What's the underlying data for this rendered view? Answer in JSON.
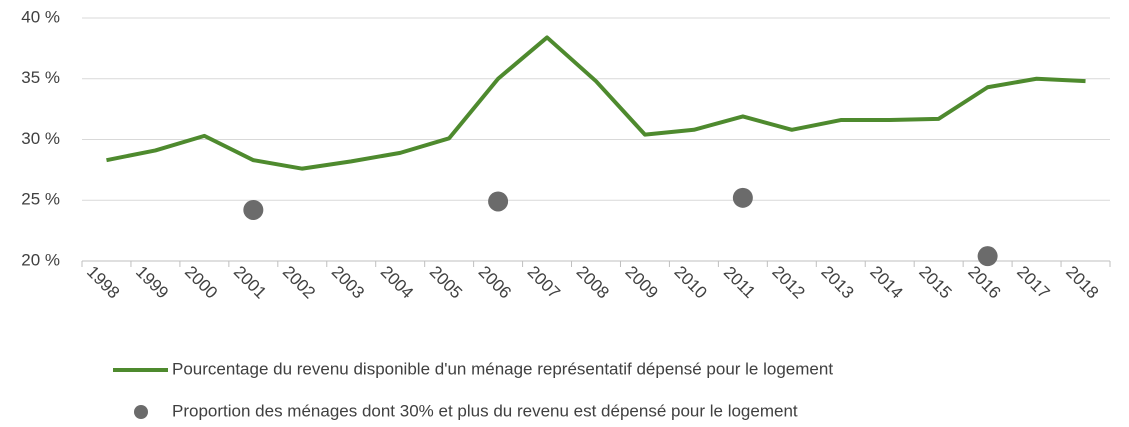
{
  "chart_data": {
    "type": "line",
    "categories": [
      "1998",
      "1999",
      "2000",
      "2001",
      "2002",
      "2003",
      "2004",
      "2005",
      "2006",
      "2007",
      "2008",
      "2009",
      "2010",
      "2011",
      "2012",
      "2013",
      "2014",
      "2015",
      "2016",
      "2017",
      "2018"
    ],
    "series": [
      {
        "name": "Pourcentage du revenu disponible d'un ménage représentatif dépensé pour le logement",
        "color": "#4e8a2e",
        "type": "line",
        "values": [
          28.3,
          29.1,
          30.3,
          28.3,
          27.6,
          28.2,
          28.9,
          30.1,
          35.0,
          38.4,
          34.8,
          30.4,
          30.8,
          31.9,
          30.8,
          31.6,
          31.6,
          31.7,
          34.3,
          35.0,
          34.8
        ]
      },
      {
        "name": "Proportion des ménages dont 30% et plus du revenu est dépensé pour le logement",
        "color": "#6b6b6b",
        "type": "scatter",
        "values": [
          null,
          null,
          null,
          24.2,
          null,
          null,
          null,
          null,
          24.9,
          null,
          null,
          null,
          null,
          25.2,
          null,
          null,
          null,
          null,
          20.4,
          null,
          null
        ]
      }
    ],
    "ylim": [
      20,
      40
    ],
    "yticks": [
      {
        "value": 20,
        "label": "20 %"
      },
      {
        "value": 25,
        "label": "25 %"
      },
      {
        "value": 30,
        "label": "30 %"
      },
      {
        "value": 35,
        "label": "35 %"
      },
      {
        "value": 40,
        "label": "40 %"
      }
    ],
    "grid": true,
    "legend": "bottom"
  }
}
